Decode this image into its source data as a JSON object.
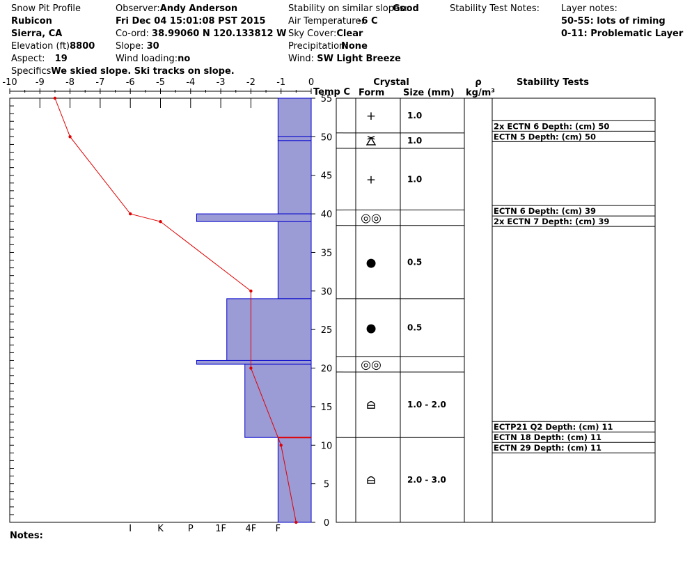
{
  "header": {
    "col1": {
      "profile_title": "Snow Pit Profile",
      "location": "Rubicon",
      "region": "Sierra, CA",
      "elevation_label": "Elevation (ft)",
      "elevation_value": "8800",
      "aspect_label": "Aspect:",
      "aspect_value": "19",
      "specifics_label": "Specifics",
      "specifics_value": "We skied slope. Ski tracks on slope."
    },
    "col2": {
      "observer_label": "Observer:",
      "observer_value": "Andy Anderson",
      "datetime": "Fri Dec 04 15:01:08 PST 2015",
      "coord_label": "Co-ord:",
      "coord_value": "38.99060 N 120.133812 W",
      "slope_label": "Slope:",
      "slope_value": "30",
      "wind_loading_label": "Wind loading:",
      "wind_loading_value": "no"
    },
    "col3": {
      "stability_label": "Stability on similar slopes:",
      "stability_value": "Good",
      "air_temp_label": "Air Temperature:",
      "air_temp_value": "-6 C",
      "sky_label": "Sky Cover:",
      "sky_value": "Clear",
      "precip_label": "Precipitation:",
      "precip_value": "None",
      "wind_label": "Wind:",
      "wind_value": "SW Light Breeze"
    },
    "col4": {
      "stability_notes_label": "Stability Test Notes:"
    },
    "col5": {
      "layer_notes_label": "Layer notes:",
      "layer_notes": [
        "50-55: lots of riming",
        "0-11: Problematic Layer"
      ]
    }
  },
  "chart_data": {
    "type": "snow_profile",
    "temperature_axis": {
      "label": "Temp C",
      "ticks": [
        "-10",
        "-9",
        "-8",
        "-7",
        "-6",
        "-5",
        "-4",
        "-3",
        "-2",
        "-1",
        "0"
      ],
      "range": [
        -10,
        0
      ]
    },
    "depth_axis": {
      "range": [
        0,
        55
      ],
      "labeled_ticks": [
        "0",
        "5",
        "10",
        "15",
        "20",
        "25",
        "30",
        "35",
        "40",
        "45",
        "50",
        "55"
      ]
    },
    "hardness_axis": {
      "labels": [
        "I",
        "K",
        "P",
        "1F",
        "4F",
        "F"
      ]
    },
    "temperature_profile": [
      {
        "depth": 55,
        "temp": -8.5
      },
      {
        "depth": 50,
        "temp": -8.0
      },
      {
        "depth": 40,
        "temp": -6.0
      },
      {
        "depth": 39,
        "temp": -5.0
      },
      {
        "depth": 30,
        "temp": -2.0
      },
      {
        "depth": 20,
        "temp": -2.0
      },
      {
        "depth": 10,
        "temp": -1.0
      },
      {
        "depth": 0,
        "temp": -0.5
      }
    ],
    "hardness_layers": [
      {
        "bottom": 50,
        "top": 55,
        "hardness": 1.1
      },
      {
        "bottom": 49.5,
        "top": 50,
        "hardness": 1.1
      },
      {
        "bottom": 40,
        "top": 49.5,
        "hardness": 1.1
      },
      {
        "bottom": 39,
        "top": 40,
        "hardness": 3.8
      },
      {
        "bottom": 29,
        "top": 39,
        "hardness": 1.1
      },
      {
        "bottom": 21,
        "top": 29,
        "hardness": 2.8
      },
      {
        "bottom": 20.5,
        "top": 21,
        "hardness": 3.8
      },
      {
        "bottom": 11,
        "top": 20.5,
        "hardness": 2.2
      },
      {
        "bottom": 0,
        "top": 11,
        "hardness": 1.1
      }
    ],
    "problem_layer_depth": 11,
    "columns": {
      "crystal": "Crystal",
      "form": "Form",
      "size": "Size (mm)",
      "density": "ρ",
      "density_unit": "kg/m³",
      "stability": "Stability Tests"
    },
    "crystal_layers": [
      {
        "bottom": 50.5,
        "top": 55,
        "form": "+",
        "size": "1.0"
      },
      {
        "bottom": 48.5,
        "top": 50.5,
        "form": "surface-hoar",
        "size": "1.0"
      },
      {
        "bottom": 40.5,
        "top": 48.5,
        "form": "+",
        "size": "1.0"
      },
      {
        "bottom": 38.5,
        "top": 40.5,
        "form": "◎◎",
        "size": ""
      },
      {
        "bottom": 29,
        "top": 38.5,
        "form": "●",
        "size": "0.5"
      },
      {
        "bottom": 21.5,
        "top": 29,
        "form": "●",
        "size": "0.5"
      },
      {
        "bottom": 19.5,
        "top": 21.5,
        "form": "◎◎",
        "size": ""
      },
      {
        "bottom": 11,
        "top": 19.5,
        "form": "depth-hoar",
        "size": "1.0 - 2.0"
      },
      {
        "bottom": 0,
        "top": 11,
        "form": "depth-hoar",
        "size": "2.0 - 3.0"
      }
    ],
    "stability_tests": [
      {
        "text": "2x ECTN 6   Depth: (cm) 50",
        "depth": 50
      },
      {
        "text": "ECTN 5   Depth: (cm) 50",
        "depth": 50
      },
      {
        "text": "ECTN 6   Depth: (cm) 39",
        "depth": 39
      },
      {
        "text": "2x ECTN 7   Depth: (cm) 39",
        "depth": 39
      },
      {
        "text": "ECTP21 Q2 Depth: (cm) 11",
        "depth": 11
      },
      {
        "text": "ECTN 18   Depth: (cm) 11",
        "depth": 11
      },
      {
        "text": "ECTN 29   Depth: (cm) 11",
        "depth": 11
      }
    ],
    "colors": {
      "hardness_fill": "#9b9bd6",
      "hardness_stroke": "#0000cc",
      "temperature": "#e00000",
      "axis": "#000000"
    }
  },
  "notes_label": "Notes:"
}
